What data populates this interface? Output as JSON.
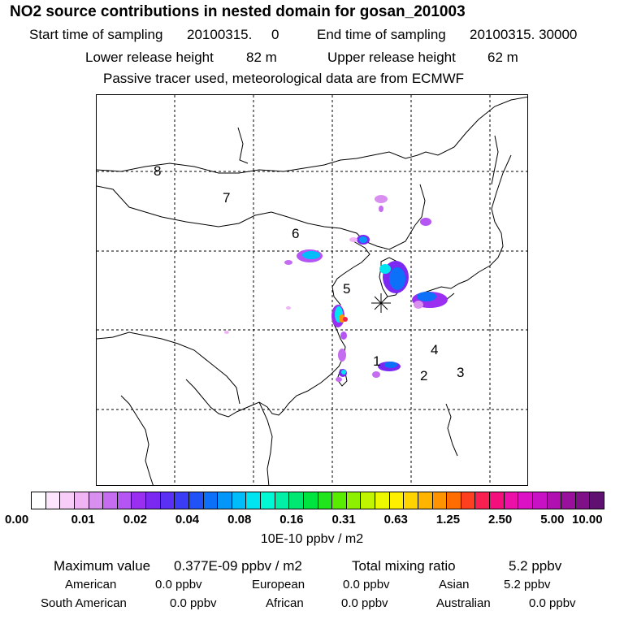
{
  "title": "NO2 source contributions in nested domain for gosan_201003",
  "header": {
    "start_label": "Start time of sampling",
    "start_value": "20100315.     0",
    "end_label": "End time of sampling",
    "end_value": "20100315. 30000",
    "lower_label": "Lower release height",
    "lower_value": "82 m",
    "upper_label": "Upper release height",
    "upper_value": "62 m",
    "note": "Passive tracer used, meteorological data are from ECMWF"
  },
  "map": {
    "region_labels": [
      "8",
      "7",
      "6",
      "5",
      "1",
      "4",
      "2",
      "3"
    ],
    "receptor_marker": "gosan-receptor-asterisk"
  },
  "colorbar": {
    "ticks": [
      "0.00",
      "0.01",
      "0.02",
      "0.04",
      "0.08",
      "0.16",
      "0.31",
      "0.63",
      "1.25",
      "2.50",
      "5.00",
      "10.00"
    ],
    "colors": [
      "#ffffff",
      "#fde6fd",
      "#f8cdf8",
      "#f0b3f4",
      "#d98ff0",
      "#c56cf0",
      "#b455f4",
      "#9a2ff2",
      "#7a28f2",
      "#5a30f4",
      "#3a3cf6",
      "#2052f8",
      "#0c70f8",
      "#0496f8",
      "#00bcf8",
      "#00e4f2",
      "#00f8d4",
      "#00f0a8",
      "#00e872",
      "#00e440",
      "#20e41c",
      "#58ec00",
      "#8cf000",
      "#c0f400",
      "#ecf800",
      "#fff000",
      "#ffd400",
      "#ffb400",
      "#ff9400",
      "#ff6c00",
      "#ff4020",
      "#f82050",
      "#f4107c",
      "#ec10a8",
      "#dc10c4",
      "#c810c4",
      "#b010b0",
      "#98109c",
      "#801088",
      "#601070"
    ],
    "unit": "10E-10 ppbv / m2"
  },
  "stats": {
    "max_label": "Maximum value",
    "max_value": "0.377E-09 ppbv / m2",
    "total_label": "Total mixing ratio",
    "total_value": "5.2 ppbv",
    "rows": [
      [
        {
          "label": "American",
          "value": "0.0 ppbv"
        },
        {
          "label": "European",
          "value": "0.0 ppbv"
        },
        {
          "label": "Asian",
          "value": "5.2 ppbv"
        }
      ],
      [
        {
          "label": "South American",
          "value": "0.0 ppbv"
        },
        {
          "label": "African",
          "value": "0.0 ppbv"
        },
        {
          "label": "Australian",
          "value": "0.0 ppbv"
        }
      ]
    ]
  }
}
